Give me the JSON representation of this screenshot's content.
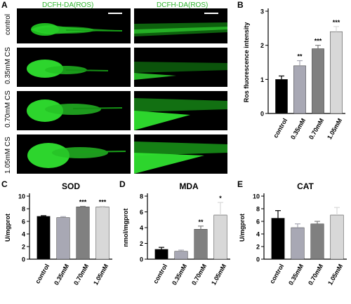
{
  "figure": {
    "panel_letters": [
      "A",
      "B",
      "C",
      "D",
      "E"
    ],
    "column_headers": [
      "DCFH-DA(ROS)",
      "DCFH-DA(ROS)"
    ],
    "row_labels": [
      "control",
      "0.35mM CS",
      "0.70mM CS",
      "1.05mM CS"
    ]
  },
  "colors": {
    "control": "#000000",
    "c035": "#a8a8b4",
    "c070": "#808080",
    "c105": "#d8d8d8",
    "fluorescence": "#22ee22",
    "header_green": "#2fb52f"
  },
  "chart_data": [
    {
      "id": "B",
      "type": "bar",
      "title": "",
      "xlabel": "",
      "ylabel": "Ros fluorescence intensity",
      "categories": [
        "control",
        "0.35mM",
        "0.70mM",
        "1.05mM"
      ],
      "values": [
        1.0,
        1.4,
        1.9,
        2.4
      ],
      "errors": [
        0.1,
        0.15,
        0.1,
        0.15
      ],
      "significance": [
        "",
        "**",
        "***",
        "***"
      ],
      "ylim": [
        0,
        3
      ],
      "yticks": [
        0,
        1,
        2,
        3
      ],
      "ytick_labels": [
        "0",
        "1",
        "2",
        "3"
      ]
    },
    {
      "id": "C",
      "type": "bar",
      "title": "SOD",
      "xlabel": "",
      "ylabel": "U/mgprot",
      "categories": [
        "control",
        "0.35mM",
        "0.70mM",
        "1.05mM"
      ],
      "values": [
        6.8,
        6.6,
        8.3,
        8.3
      ],
      "errors": [
        0.1,
        0.15,
        0.08,
        0.08
      ],
      "significance": [
        "",
        "",
        "***",
        "***"
      ],
      "ylim": [
        0,
        10
      ],
      "yticks": [
        0,
        2,
        4,
        6,
        8,
        10
      ],
      "ytick_labels": [
        "0",
        "2",
        "4",
        "6",
        "8",
        "10"
      ]
    },
    {
      "id": "D",
      "type": "bar",
      "title": "MDA",
      "xlabel": "",
      "ylabel": "nmol/mgprot",
      "categories": [
        "control",
        "0.35mM",
        "0.70mM",
        "1.05mM"
      ],
      "values": [
        1.25,
        1.0,
        3.8,
        5.6
      ],
      "errors": [
        0.25,
        0.15,
        0.4,
        1.6
      ],
      "significance": [
        "",
        "",
        "**",
        "*"
      ],
      "ylim": [
        0,
        8
      ],
      "yticks": [
        0,
        2,
        4,
        6,
        8
      ],
      "ytick_labels": [
        "0",
        "2",
        "4",
        "6",
        "8"
      ]
    },
    {
      "id": "E",
      "type": "bar",
      "title": "CAT",
      "xlabel": "",
      "ylabel": "U/mgprot",
      "categories": [
        "control",
        "0.35mM",
        "0.70mM",
        "1.05mM"
      ],
      "values": [
        6.5,
        5.0,
        5.6,
        7.0
      ],
      "errors": [
        1.2,
        0.6,
        0.4,
        1.2
      ],
      "significance": [
        "",
        "",
        "",
        ""
      ],
      "ylim": [
        0,
        10
      ],
      "yticks": [
        0,
        2,
        4,
        6,
        8,
        10
      ],
      "ytick_labels": [
        "0",
        "2",
        "4",
        "6",
        "8",
        "10"
      ]
    }
  ]
}
